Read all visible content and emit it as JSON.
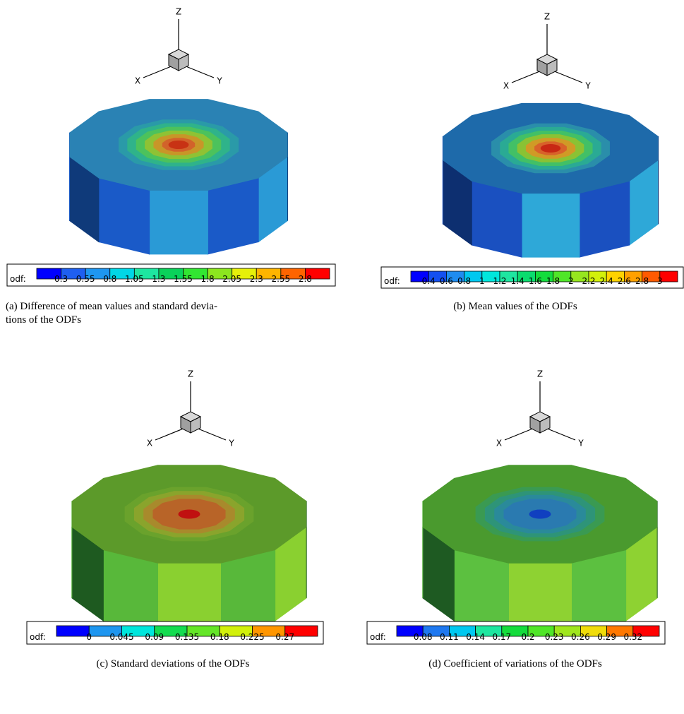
{
  "panels": [
    {
      "axes": {
        "x": "X",
        "y": "Y",
        "z": "Z"
      },
      "colorbar": {
        "label": "odf:",
        "colors": [
          "#0000ff",
          "#1e5ff0",
          "#1e96f0",
          "#00d7e6",
          "#1ee6a0",
          "#0ad25a",
          "#32e632",
          "#8ce61e",
          "#e6f00a",
          "#ffb400",
          "#ff6400",
          "#ff0000"
        ],
        "ticks": [
          0.3,
          0.55,
          0.8,
          1.05,
          1.3,
          1.55,
          1.8,
          2.05,
          2.3,
          2.55,
          2.8
        ]
      },
      "caption": [
        "(a) Difference of mean values and standard devia-",
        "tions of the ODFs"
      ]
    },
    {
      "axes": {
        "x": "X",
        "y": "Y",
        "z": "Z"
      },
      "colorbar": {
        "label": "odf:",
        "colors": [
          "#0000ff",
          "#1450f0",
          "#1e8cf0",
          "#00c8f0",
          "#00e6dc",
          "#1ee6a0",
          "#0adc6e",
          "#14dc3c",
          "#50e628",
          "#96e61e",
          "#d2f00a",
          "#ffd200",
          "#ffa000",
          "#ff5a00",
          "#ff0000"
        ],
        "ticks": [
          0.4,
          0.6,
          0.8,
          1,
          1.2,
          1.4,
          1.6,
          1.8,
          2,
          2.2,
          2.4,
          2.6,
          2.8,
          3
        ]
      },
      "caption": [
        "(b) Mean values of the ODFs"
      ]
    },
    {
      "axes": {
        "x": "X",
        "y": "Y",
        "z": "Z"
      },
      "colorbar": {
        "label": "odf:",
        "colors": [
          "#0000ff",
          "#1e96f0",
          "#00e6dc",
          "#14dc50",
          "#64e628",
          "#d2f00a",
          "#ff9600",
          "#ff0000"
        ],
        "ticks": [
          0,
          0.045,
          0.09,
          0.135,
          0.18,
          0.225,
          0.27
        ]
      },
      "caption": [
        "(c) Standard deviations of the ODFs"
      ]
    },
    {
      "axes": {
        "x": "X",
        "y": "Y",
        "z": "Z"
      },
      "colorbar": {
        "label": "odf:",
        "colors": [
          "#0000ff",
          "#1e78f0",
          "#00c8f0",
          "#1ee6a0",
          "#14dc3c",
          "#50e628",
          "#a0e61e",
          "#f0dc0a",
          "#ff7800",
          "#ff0000"
        ],
        "ticks": [
          0.08,
          0.11,
          0.14,
          0.17,
          0.2,
          0.23,
          0.26,
          0.29,
          0.32
        ]
      },
      "caption": [
        "(d) Coefficient of variations of the ODFs"
      ]
    }
  ]
}
